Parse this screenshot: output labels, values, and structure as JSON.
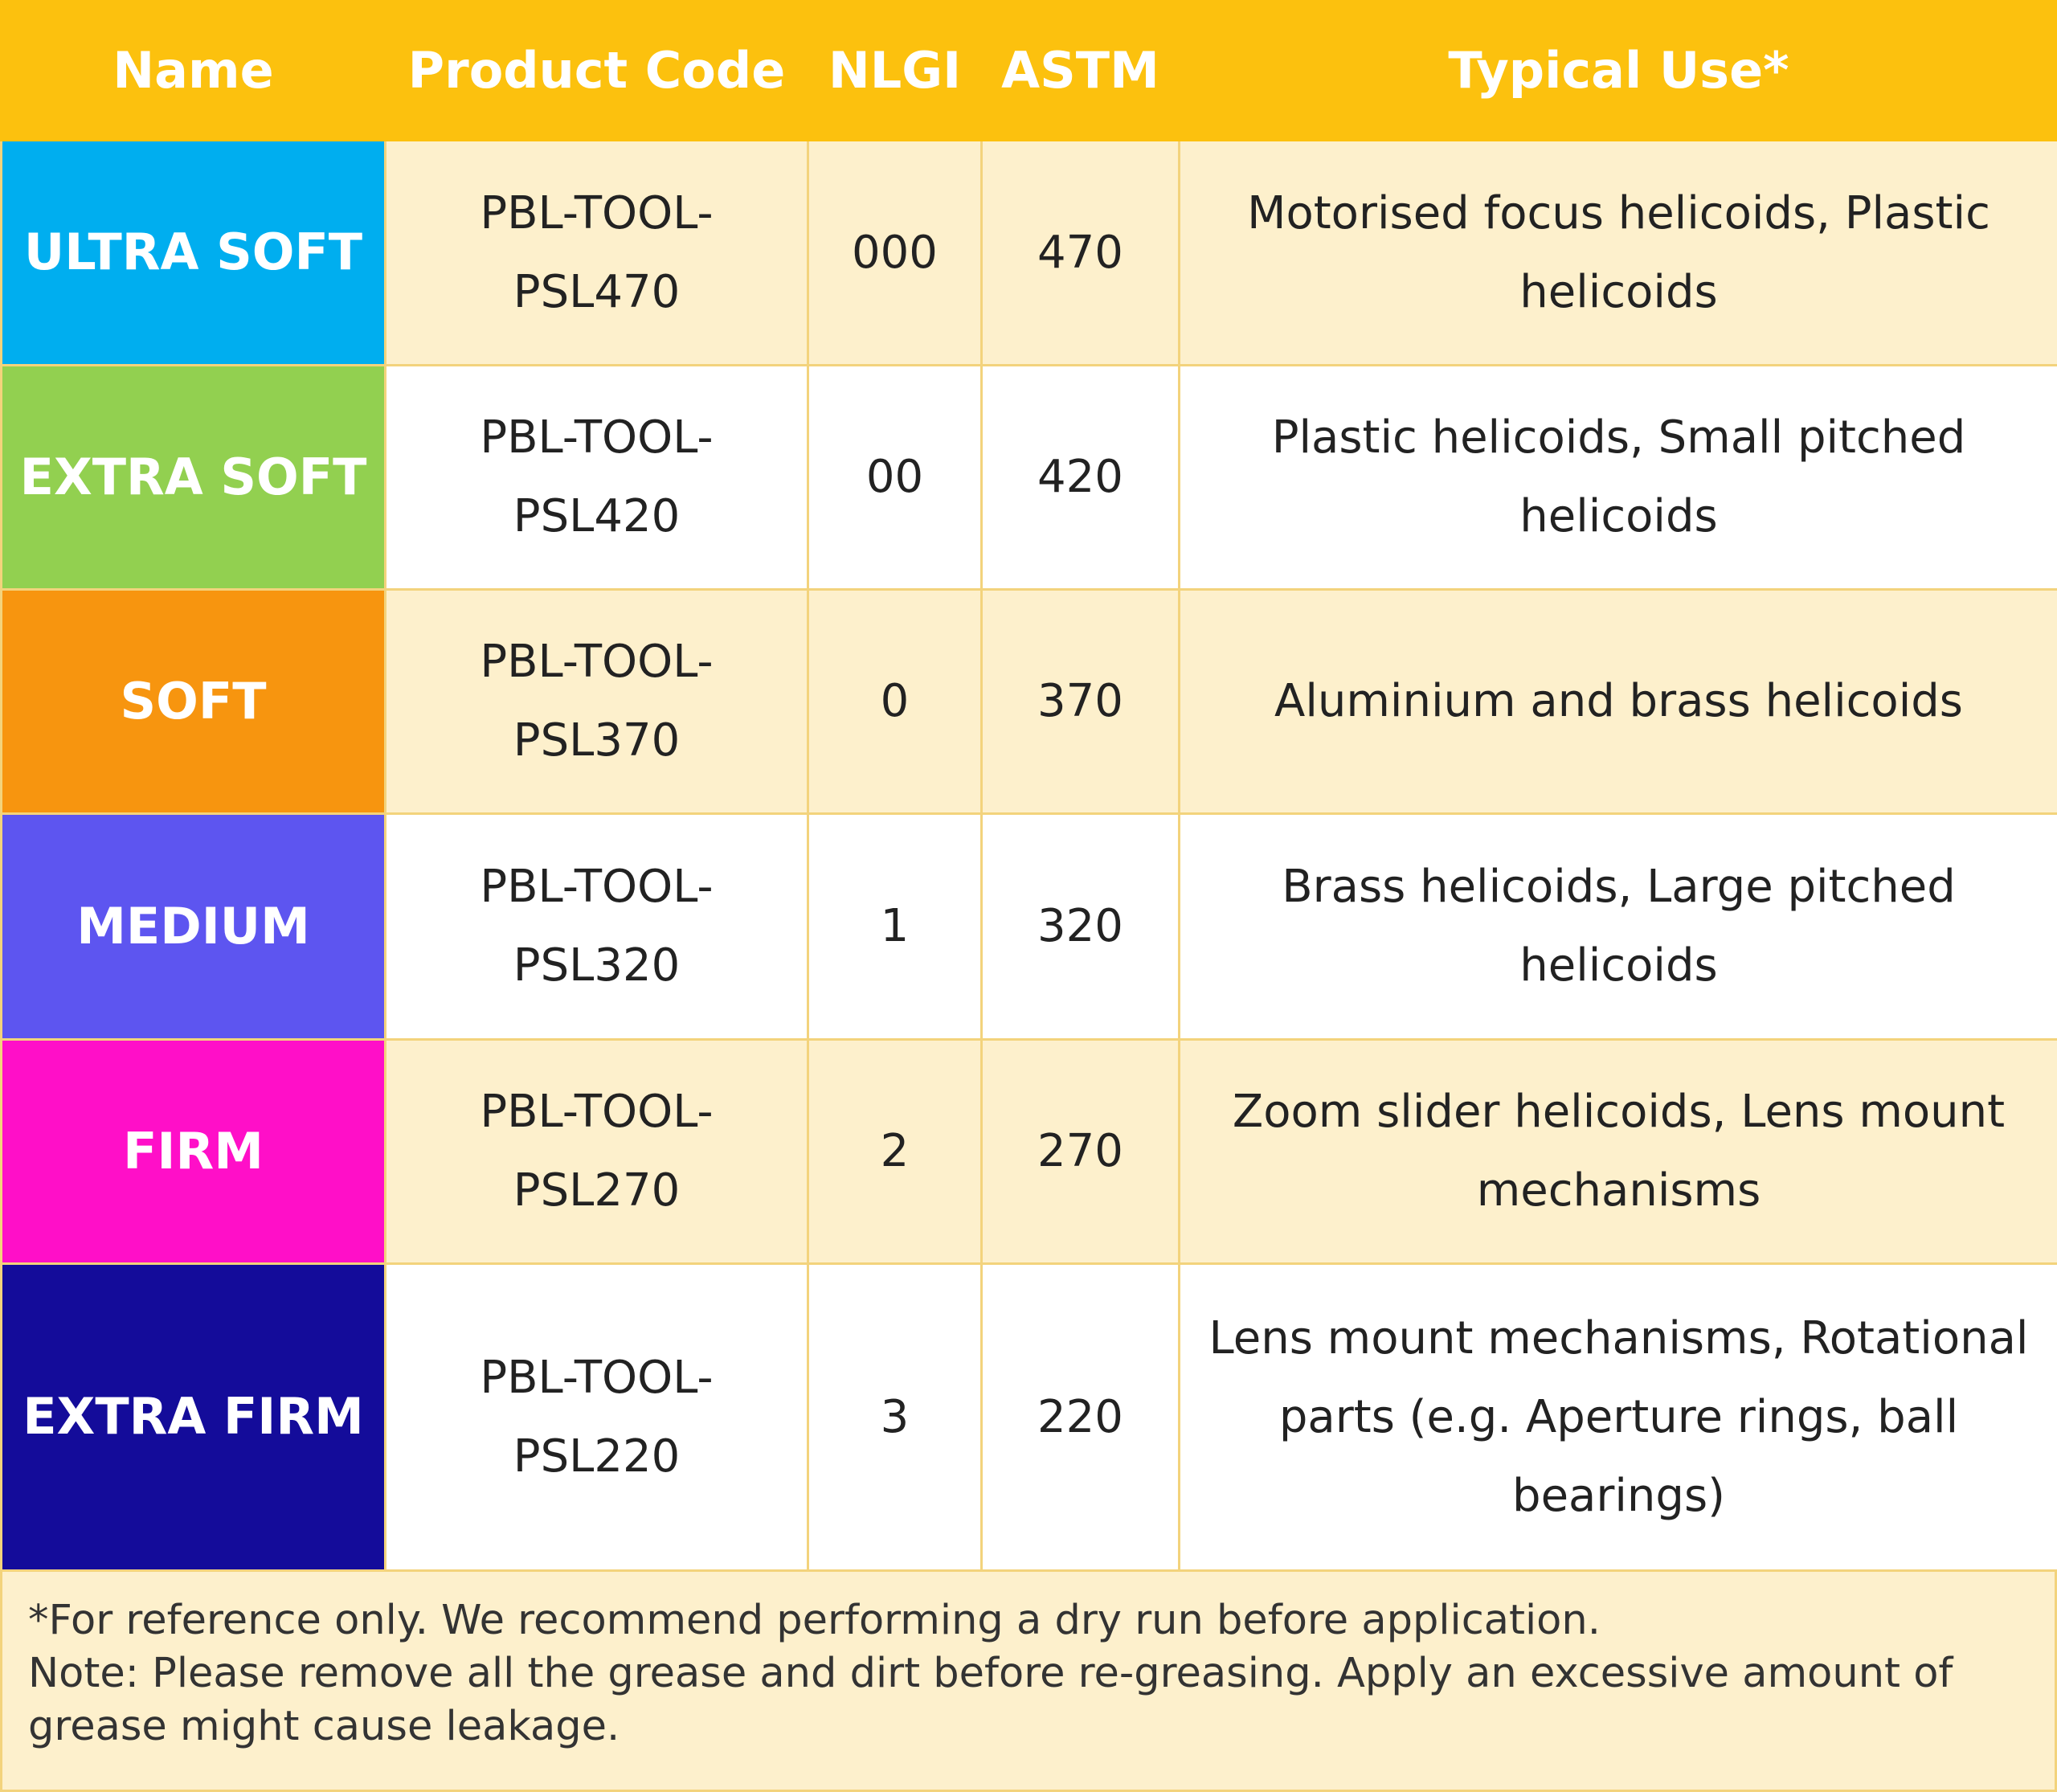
{
  "table": {
    "header": [
      "Name",
      "Product Code",
      "NLGI",
      "ASTM",
      "Typical Use*"
    ],
    "rows": [
      [
        "ULTRA SOFT",
        "PBL-TOOL-PSL470",
        "000",
        "470",
        "Motorised focus helicoids, Plastic helicoids"
      ],
      [
        "EXTRA SOFT",
        "PBL-TOOL-PSL420",
        "00",
        "420",
        "Plastic helicoids, Small pitched helicoids"
      ],
      [
        "SOFT",
        "PBL-TOOL-PSL370",
        "0",
        "370",
        "Aluminium and brass helicoids"
      ],
      [
        "MEDIUM",
        "PBL-TOOL-PSL320",
        "1",
        "320",
        "Brass helicoids, Large pitched helicoids"
      ],
      [
        "FIRM",
        "PBL-TOOL-PSL270",
        "2",
        "270",
        "Zoom slider helicoids, Lens mount mechanisms"
      ],
      [
        "EXTRA FIRM",
        "PBL-TOOL-PSL220",
        "3",
        "220",
        "Lens mount mechanisms, Rotational parts (e.g. Aperture rings, ball bearings)"
      ]
    ]
  },
  "footer": [
    "*For reference only. We recommend performing a dry run before application.",
    "Note: Please remove all the grease and dirt before re-greasing. Apply an excessive amount of grease might cause leakage."
  ]
}
